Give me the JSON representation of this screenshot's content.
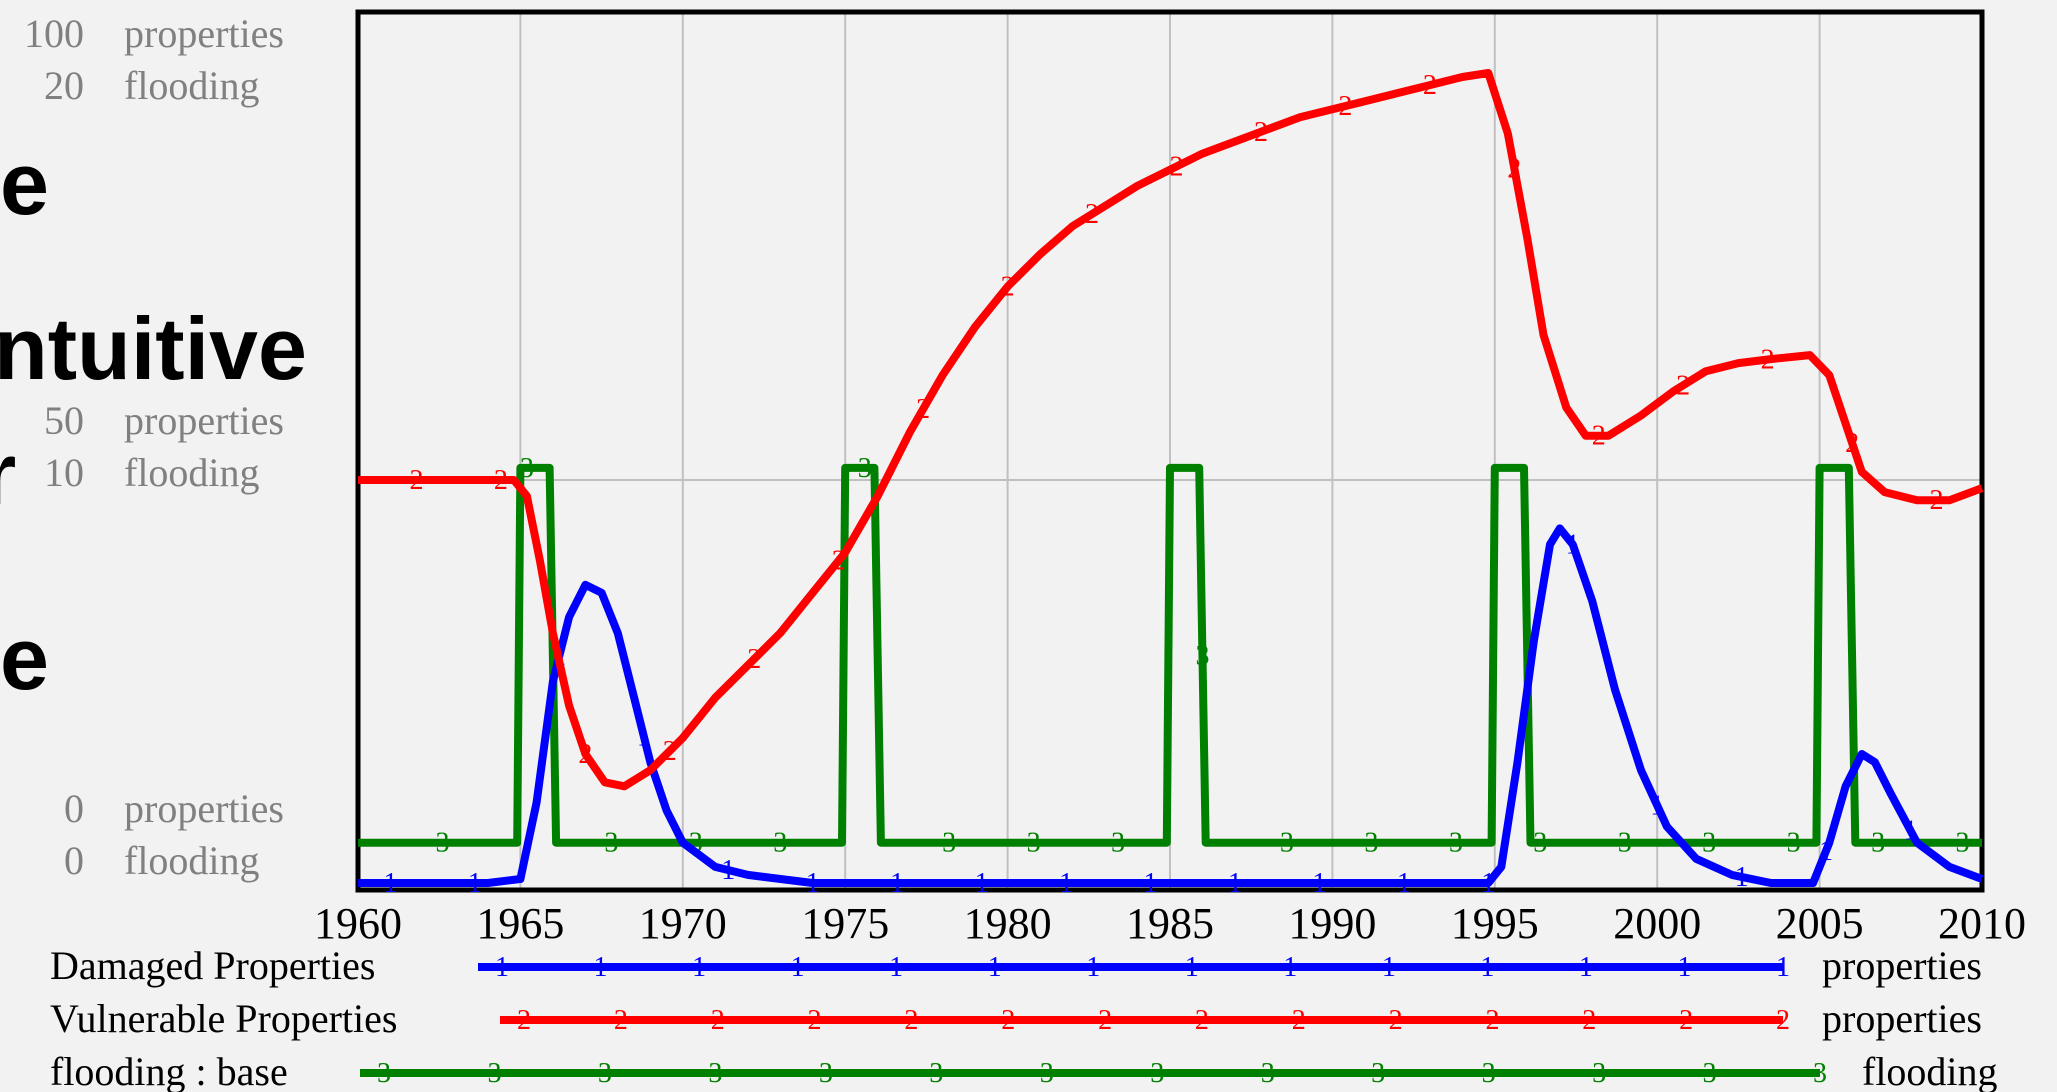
{
  "background_text": [
    "e",
    "ntuitive",
    "r",
    "e"
  ],
  "chart_data": {
    "type": "line",
    "xlim": [
      1960,
      2010
    ],
    "x_ticks": [
      1960,
      1965,
      1970,
      1975,
      1980,
      1985,
      1990,
      1995,
      2000,
      2005,
      2010
    ],
    "grid": true,
    "left_axes": [
      {
        "unit": "properties",
        "ticks": [
          "100",
          "50",
          "0"
        ],
        "range": [
          0,
          100
        ]
      },
      {
        "unit": "flooding",
        "ticks": [
          "20",
          "10",
          "0"
        ],
        "range": [
          0,
          20
        ]
      }
    ],
    "series": [
      {
        "name": "Damaged Properties",
        "marker": "1",
        "unit": "properties",
        "color": "#0000ff",
        "points": [
          [
            1960,
            0
          ],
          [
            1964,
            0
          ],
          [
            1965,
            0.5
          ],
          [
            1965.5,
            10
          ],
          [
            1966,
            25
          ],
          [
            1966.5,
            33
          ],
          [
            1967,
            37
          ],
          [
            1967.5,
            36
          ],
          [
            1968,
            31
          ],
          [
            1968.5,
            23
          ],
          [
            1969,
            15
          ],
          [
            1969.5,
            9
          ],
          [
            1970,
            5
          ],
          [
            1971,
            2
          ],
          [
            1972,
            1
          ],
          [
            1974,
            0
          ],
          [
            1994.8,
            0
          ],
          [
            1995.2,
            2
          ],
          [
            1995.7,
            15
          ],
          [
            1996.2,
            30
          ],
          [
            1996.7,
            42
          ],
          [
            1997,
            44
          ],
          [
            1997.4,
            42
          ],
          [
            1998,
            35
          ],
          [
            1998.7,
            24
          ],
          [
            1999.5,
            14
          ],
          [
            2000.3,
            7
          ],
          [
            2001.2,
            3
          ],
          [
            2002.3,
            1
          ],
          [
            2003.5,
            0
          ],
          [
            2004.8,
            0
          ],
          [
            2005.3,
            5
          ],
          [
            2005.8,
            12
          ],
          [
            2006.3,
            16
          ],
          [
            2006.7,
            15
          ],
          [
            2007.2,
            11
          ],
          [
            2008,
            5
          ],
          [
            2009,
            2
          ],
          [
            2010,
            0.5
          ]
        ]
      },
      {
        "name": "Vulnerable Properties",
        "marker": "2",
        "unit": "properties",
        "color": "#ff0000",
        "points": [
          [
            1960,
            50
          ],
          [
            1964.8,
            50
          ],
          [
            1965.2,
            48
          ],
          [
            1965.6,
            40
          ],
          [
            1966,
            31
          ],
          [
            1966.5,
            22
          ],
          [
            1967,
            16
          ],
          [
            1967.6,
            12.5
          ],
          [
            1968.2,
            12
          ],
          [
            1969,
            14
          ],
          [
            1970,
            18
          ],
          [
            1971,
            23
          ],
          [
            1972,
            27
          ],
          [
            1973,
            31
          ],
          [
            1974,
            36
          ],
          [
            1975,
            41
          ],
          [
            1976,
            48
          ],
          [
            1977,
            56
          ],
          [
            1978,
            63
          ],
          [
            1979,
            69
          ],
          [
            1980,
            74
          ],
          [
            1981,
            78
          ],
          [
            1982,
            81.5
          ],
          [
            1983,
            84
          ],
          [
            1984,
            86.5
          ],
          [
            1985,
            88.5
          ],
          [
            1986,
            90.5
          ],
          [
            1987,
            92
          ],
          [
            1988,
            93.5
          ],
          [
            1989,
            95
          ],
          [
            1990,
            96
          ],
          [
            1991,
            97
          ],
          [
            1992,
            98
          ],
          [
            1993,
            99
          ],
          [
            1994,
            100
          ],
          [
            1994.8,
            100.5
          ],
          [
            1995.4,
            93
          ],
          [
            1996,
            80
          ],
          [
            1996.5,
            68
          ],
          [
            1997.2,
            59
          ],
          [
            1997.8,
            55.5
          ],
          [
            1998.5,
            55.5
          ],
          [
            1999.5,
            58
          ],
          [
            2000.5,
            61
          ],
          [
            2001.5,
            63.5
          ],
          [
            2002.5,
            64.5
          ],
          [
            2003.5,
            65
          ],
          [
            2004.7,
            65.5
          ],
          [
            2005.3,
            63
          ],
          [
            2005.8,
            57
          ],
          [
            2006.3,
            51
          ],
          [
            2007,
            48.5
          ],
          [
            2008,
            47.5
          ],
          [
            2009,
            47.5
          ],
          [
            2010,
            49
          ]
        ]
      },
      {
        "name": "flooding : base",
        "marker": "3",
        "unit": "flooding",
        "color": "#008000",
        "points": [
          [
            1960,
            1
          ],
          [
            1964.9,
            1
          ],
          [
            1965,
            10.3
          ],
          [
            1965.9,
            10.3
          ],
          [
            1966.1,
            1
          ],
          [
            1974.9,
            1
          ],
          [
            1975,
            10.3
          ],
          [
            1975.9,
            10.3
          ],
          [
            1976.1,
            1
          ],
          [
            1984.9,
            1
          ],
          [
            1985,
            10.3
          ],
          [
            1985.9,
            10.3
          ],
          [
            1986.1,
            1
          ],
          [
            1994.9,
            1
          ],
          [
            1995,
            10.3
          ],
          [
            1995.9,
            10.3
          ],
          [
            1996.1,
            1
          ],
          [
            2004.9,
            1
          ],
          [
            2005,
            10.3
          ],
          [
            2005.9,
            10.3
          ],
          [
            2006.1,
            1
          ],
          [
            2010,
            1
          ]
        ]
      }
    ],
    "legend": [
      {
        "label": "Damaged Properties",
        "unit": "properties"
      },
      {
        "label": "Vulnerable Properties",
        "unit": "properties"
      },
      {
        "label": "flooding : base",
        "unit": "flooding"
      }
    ]
  }
}
